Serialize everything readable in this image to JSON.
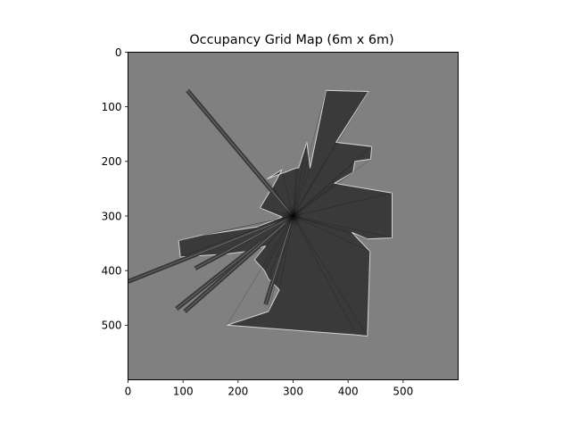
{
  "chart_data": {
    "type": "heatmap",
    "title": "Occupancy Grid Map (6m x 6m)",
    "xlabel": "",
    "ylabel": "",
    "grid_cells": [
      600,
      600
    ],
    "xlim": [
      0,
      600
    ],
    "ylim": [
      600,
      0
    ],
    "x_ticks": [
      0,
      100,
      200,
      300,
      400,
      500
    ],
    "x_tick_labels": [
      "0",
      "100",
      "200",
      "300",
      "400",
      "500"
    ],
    "y_ticks": [
      0,
      100,
      200,
      300,
      400,
      500
    ],
    "y_tick_labels": [
      "0",
      "100",
      "200",
      "300",
      "400",
      "500"
    ],
    "colormap": "gray",
    "colors": {
      "unknown": "#808080",
      "free": "#3a3a3a",
      "free_dense": "#000000",
      "occupied_edge": "#d4d4d4"
    },
    "robot_origin": [
      300,
      300
    ],
    "free_region_outline": [
      [
        310,
        212
      ],
      [
        325,
        165
      ],
      [
        331,
        212
      ],
      [
        360,
        70
      ],
      [
        437,
        72
      ],
      [
        378,
        165
      ],
      [
        443,
        173
      ],
      [
        441,
        196
      ],
      [
        412,
        200
      ],
      [
        409,
        220
      ],
      [
        375,
        240
      ],
      [
        480,
        258
      ],
      [
        480,
        340
      ],
      [
        435,
        342
      ],
      [
        407,
        330
      ],
      [
        440,
        365
      ],
      [
        435,
        520
      ],
      [
        415,
        518
      ],
      [
        180,
        500
      ],
      [
        255,
        475
      ],
      [
        275,
        435
      ],
      [
        255,
        415
      ],
      [
        248,
        400
      ],
      [
        230,
        380
      ],
      [
        250,
        355
      ],
      [
        215,
        365
      ],
      [
        175,
        370
      ],
      [
        95,
        375
      ],
      [
        92,
        345
      ],
      [
        135,
        335
      ],
      [
        235,
        320
      ],
      [
        280,
        302
      ],
      [
        240,
        285
      ],
      [
        262,
        248
      ],
      [
        280,
        215
      ],
      [
        253,
        232
      ],
      [
        306,
        212
      ]
    ],
    "beams": [
      {
        "from": [
          300,
          300
        ],
        "to": [
          108,
          70
        ]
      },
      {
        "from": [
          300,
          300
        ],
        "to": [
          0,
          420
        ]
      },
      {
        "from": [
          300,
          300
        ],
        "to": [
          88,
          470
        ]
      },
      {
        "from": [
          300,
          300
        ],
        "to": [
          103,
          475
        ]
      },
      {
        "from": [
          300,
          300
        ],
        "to": [
          250,
          462
        ]
      },
      {
        "from": [
          300,
          300
        ],
        "to": [
          122,
          396
        ]
      }
    ]
  }
}
